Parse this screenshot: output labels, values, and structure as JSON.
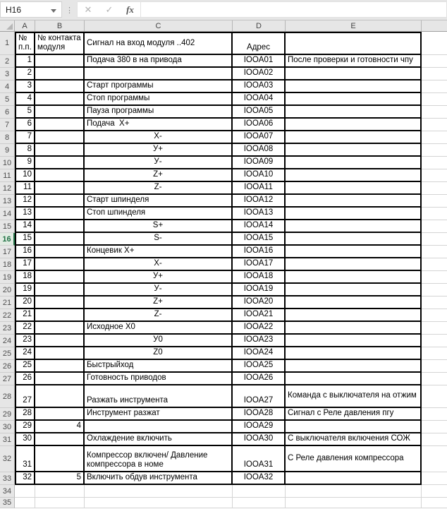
{
  "name_box": "H16",
  "formula_bar": {
    "cancel_icon": "✕",
    "confirm_icon": "✓",
    "fx_icon": "fx",
    "value": ""
  },
  "columns": [
    "A",
    "B",
    "C",
    "D",
    "E"
  ],
  "selection": {
    "active_cell": "H16",
    "highlighted_row": 16
  },
  "header_row": {
    "n": 1,
    "a": "№ п.п.",
    "b": "№ контакта модуля",
    "c": "Сигнал на вход модуля ..402",
    "d": "Адрес",
    "e": ""
  },
  "rows": [
    {
      "n": 2,
      "a": "1",
      "b": "",
      "c": "Подача 380 в на привода",
      "d": "IOOA01",
      "e": "После проверки и готовности чпу"
    },
    {
      "n": 3,
      "a": "2",
      "b": "",
      "c": "",
      "d": "IOOA02",
      "e": ""
    },
    {
      "n": 4,
      "a": "3",
      "b": "",
      "c": "Старт программы",
      "d": "IOOA03",
      "e": ""
    },
    {
      "n": 5,
      "a": "4",
      "b": "",
      "c": "Стоп программы",
      "d": "IOOA04",
      "e": ""
    },
    {
      "n": 6,
      "a": "5",
      "b": "",
      "c": "Пауза программы",
      "d": "IOOA05",
      "e": ""
    },
    {
      "n": 7,
      "a": "6",
      "b": "",
      "c": "Подача  Х+",
      "d": "IOOA06",
      "e": ""
    },
    {
      "n": 8,
      "a": "7",
      "b": "",
      "c": "Х-",
      "d": "IOOA07",
      "e": ""
    },
    {
      "n": 9,
      "a": "8",
      "b": "",
      "c": "У+",
      "d": "IOOA08",
      "e": ""
    },
    {
      "n": 10,
      "a": "9",
      "b": "",
      "c": "У-",
      "d": "IOOA09",
      "e": ""
    },
    {
      "n": 11,
      "a": "10",
      "b": "",
      "c": "Z+",
      "d": "IOOA10",
      "e": ""
    },
    {
      "n": 12,
      "a": "11",
      "b": "",
      "c": "Z-",
      "d": "IOOA11",
      "e": ""
    },
    {
      "n": 13,
      "a": "12",
      "b": "",
      "c": "Старт шпинделя",
      "d": "IOOA12",
      "e": ""
    },
    {
      "n": 14,
      "a": "13",
      "b": "",
      "c": "Стоп шпинделя",
      "d": "IOOA13",
      "e": ""
    },
    {
      "n": 15,
      "a": "14",
      "b": "",
      "c": "S+",
      "d": "IOOA14",
      "e": ""
    },
    {
      "n": 16,
      "a": "15",
      "b": "",
      "c": "S-",
      "d": "IOOA15",
      "e": ""
    },
    {
      "n": 17,
      "a": "16",
      "b": "",
      "c": "Концевик Х+",
      "d": "IOOA16",
      "e": ""
    },
    {
      "n": 18,
      "a": "17",
      "b": "",
      "c": "Х-",
      "d": "IOOA17",
      "e": ""
    },
    {
      "n": 19,
      "a": "18",
      "b": "",
      "c": "У+",
      "d": "IOOA18",
      "e": ""
    },
    {
      "n": 20,
      "a": "19",
      "b": "",
      "c": "У-",
      "d": "IOOA19",
      "e": ""
    },
    {
      "n": 21,
      "a": "20",
      "b": "",
      "c": "Z+",
      "d": "IOOA20",
      "e": ""
    },
    {
      "n": 22,
      "a": "21",
      "b": "",
      "c": "Z-",
      "d": "IOOA21",
      "e": ""
    },
    {
      "n": 23,
      "a": "22",
      "b": "",
      "c": "Исходное Х0",
      "d": "IOOA22",
      "e": ""
    },
    {
      "n": 24,
      "a": "23",
      "b": "",
      "c": "У0",
      "d": "IOOA23",
      "e": ""
    },
    {
      "n": 25,
      "a": "24",
      "b": "",
      "c": "Z0",
      "d": "IOOA24",
      "e": ""
    },
    {
      "n": 26,
      "a": "25",
      "b": "",
      "c": "Быстрыйход",
      "d": "IOOA25",
      "e": ""
    },
    {
      "n": 27,
      "a": "26",
      "b": "",
      "c": "Готовность приводов",
      "d": "IOOA26",
      "e": ""
    },
    {
      "n": 28,
      "a": "27",
      "b": "",
      "c": "Разжать инструмента",
      "d": "IOOA27",
      "e": "Команда с выключателя на отжим"
    },
    {
      "n": 29,
      "a": "28",
      "b": "",
      "c": "Инструмент разжат",
      "d": "IOOA28",
      "e": "Сигнал с Реле давления пгу"
    },
    {
      "n": 30,
      "a": "29",
      "b": "4",
      "c": "",
      "d": "IOOA29",
      "e": ""
    },
    {
      "n": 31,
      "a": "30",
      "b": "",
      "c": "Охлаждение включить",
      "d": "IOOA30",
      "e": "С выключателя включения СОЖ"
    },
    {
      "n": 32,
      "a": "31",
      "b": "",
      "c": "Компрессор включен/ Давление компрессора в номе",
      "d": "IOOA31",
      "e": "С Реле давления компрессора"
    },
    {
      "n": 33,
      "a": "32",
      "b": "5",
      "c": "Включить обдув инструмента",
      "d": "IOOA32",
      "e": ""
    }
  ],
  "empty_rows": [
    34,
    35
  ],
  "colors": {
    "table_border": "#000000",
    "gridline": "#d4d4d4",
    "header_bg": "#e6e6e6",
    "active_green": "#217346"
  }
}
